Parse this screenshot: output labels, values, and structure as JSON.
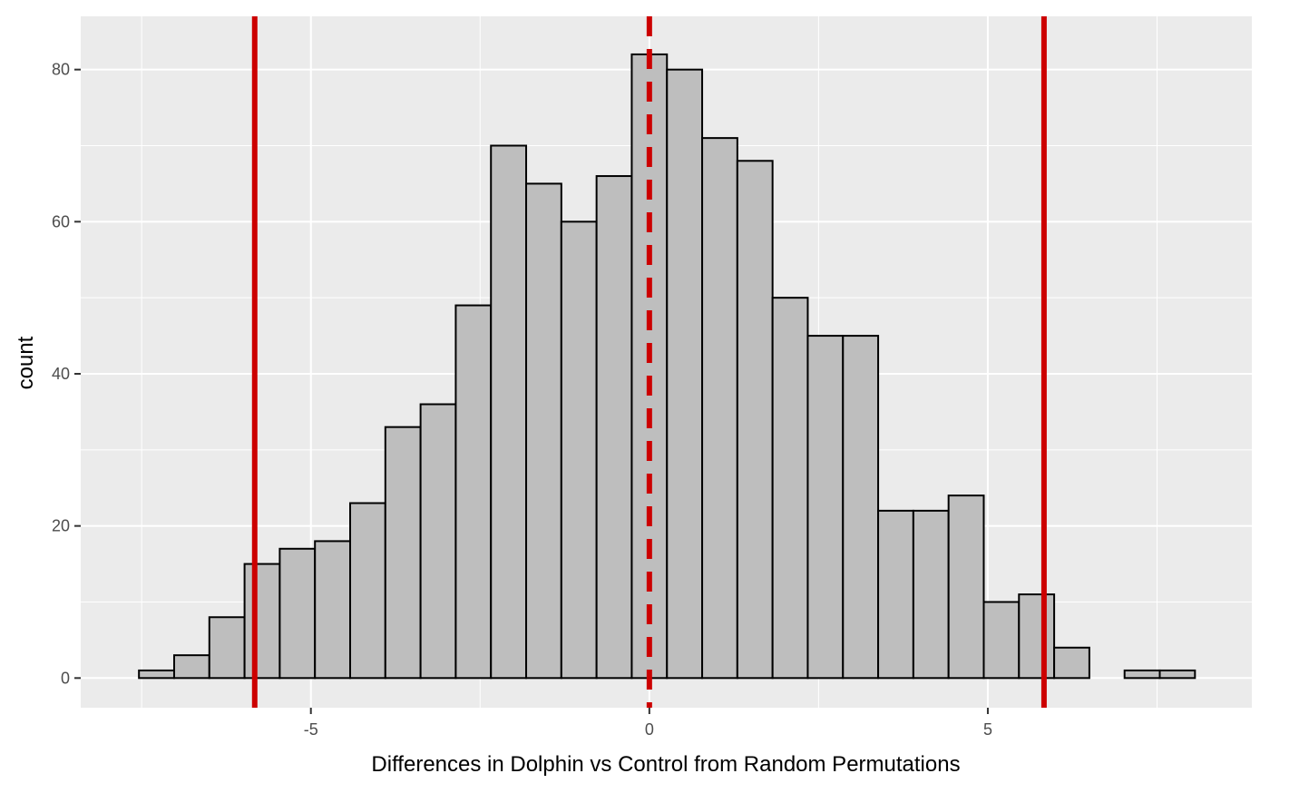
{
  "chart_data": {
    "type": "bar",
    "xlabel": "Differences in Dolphin vs Control from Random Permutations",
    "ylabel": "count",
    "bin_width": 0.52,
    "bins": [
      {
        "x0": -7.54,
        "x1": -7.02,
        "count": 1
      },
      {
        "x0": -7.02,
        "x1": -6.5,
        "count": 3
      },
      {
        "x0": -6.5,
        "x1": -5.98,
        "count": 8
      },
      {
        "x0": -5.98,
        "x1": -5.46,
        "count": 15
      },
      {
        "x0": -5.46,
        "x1": -4.94,
        "count": 17
      },
      {
        "x0": -4.94,
        "x1": -4.42,
        "count": 18
      },
      {
        "x0": -4.42,
        "x1": -3.9,
        "count": 23
      },
      {
        "x0": -3.9,
        "x1": -3.38,
        "count": 33
      },
      {
        "x0": -3.38,
        "x1": -2.86,
        "count": 36
      },
      {
        "x0": -2.86,
        "x1": -2.34,
        "count": 49
      },
      {
        "x0": -2.34,
        "x1": -1.82,
        "count": 70
      },
      {
        "x0": -1.82,
        "x1": -1.3,
        "count": 65
      },
      {
        "x0": -1.3,
        "x1": -0.78,
        "count": 60
      },
      {
        "x0": -0.78,
        "x1": -0.26,
        "count": 66
      },
      {
        "x0": -0.26,
        "x1": 0.26,
        "count": 82
      },
      {
        "x0": 0.26,
        "x1": 0.78,
        "count": 80
      },
      {
        "x0": 0.78,
        "x1": 1.3,
        "count": 71
      },
      {
        "x0": 1.3,
        "x1": 1.82,
        "count": 68
      },
      {
        "x0": 1.82,
        "x1": 2.34,
        "count": 50
      },
      {
        "x0": 2.34,
        "x1": 2.86,
        "count": 45
      },
      {
        "x0": 2.86,
        "x1": 3.38,
        "count": 45
      },
      {
        "x0": 3.38,
        "x1": 3.9,
        "count": 22
      },
      {
        "x0": 3.9,
        "x1": 4.42,
        "count": 22
      },
      {
        "x0": 4.42,
        "x1": 4.94,
        "count": 24
      },
      {
        "x0": 4.94,
        "x1": 5.46,
        "count": 10
      },
      {
        "x0": 5.46,
        "x1": 5.98,
        "count": 11
      },
      {
        "x0": 5.98,
        "x1": 6.5,
        "count": 4
      },
      {
        "x0": 6.5,
        "x1": 7.02,
        "count": 0
      },
      {
        "x0": 7.02,
        "x1": 7.54,
        "count": 1
      },
      {
        "x0": 7.54,
        "x1": 8.06,
        "count": 1
      }
    ],
    "xlim": [
      -8.4,
      8.9
    ],
    "ylim": [
      -3.9,
      87
    ],
    "x_ticks": [
      -5,
      0,
      5
    ],
    "y_ticks": [
      0,
      20,
      40,
      60,
      80
    ],
    "vlines": [
      {
        "x": -5.83,
        "style": "solid",
        "color": "#cc0000"
      },
      {
        "x": 0.0,
        "style": "dashed",
        "color": "#cc0000"
      },
      {
        "x": 5.83,
        "style": "solid",
        "color": "#cc0000"
      }
    ],
    "grid": true,
    "panel_background": "#ebebeb",
    "bar_fill": "#bebebe",
    "bar_outline": "#000000"
  }
}
